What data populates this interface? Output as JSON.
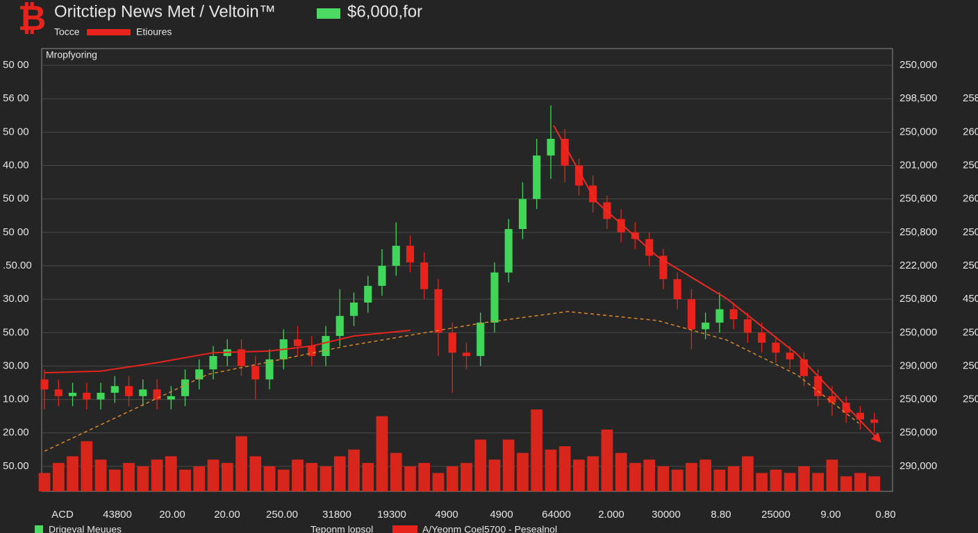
{
  "chart_data": {
    "type": "candlestick",
    "title": "Oritctiep News Met / Veltoin™",
    "price_label": "$6,000,for",
    "price_color": "#4cd964",
    "logo": "₿",
    "logo_color": "#e8231c",
    "panel_label": "Mropfyoring",
    "legend_top": [
      {
        "name": "Tocce",
        "color": "#e8231c"
      },
      {
        "name": "Etioures"
      }
    ],
    "legend_bottom": [
      {
        "name": "Drigeval Meuues",
        "color": "#4cd964"
      },
      {
        "name": "Teponm lopsol"
      },
      {
        "name": "A/Yeonm Coel5700 - Pesealnol",
        "color": "#e8231c"
      }
    ],
    "up_color": "#3fd65a",
    "down_color": "#e8231c",
    "volume_color": "#d9261c",
    "grid": true,
    "xlim": [
      -0.2,
      60.3
    ],
    "ylim": [
      -0.75,
      12.5
    ],
    "y2lim": [
      -0.75,
      12.5
    ],
    "yticks": [
      {
        "value": 12,
        "label": "50 00"
      },
      {
        "value": 11,
        "label": "56 00"
      },
      {
        "value": 10,
        "label": "50 00"
      },
      {
        "value": 9,
        "label": "40.00"
      },
      {
        "value": 8,
        "label": "50 00"
      },
      {
        "value": 7,
        "label": "50 00"
      },
      {
        "value": 6,
        "label": ".50.00"
      },
      {
        "value": 5,
        "label": "30.00"
      },
      {
        "value": 4,
        "label": "50.00"
      },
      {
        "value": 3,
        "label": "30.00"
      },
      {
        "value": 2,
        "label": "10.00"
      },
      {
        "value": 1,
        "label": "20.00"
      },
      {
        "value": 0,
        "label": "50.00"
      }
    ],
    "y2ticks": [
      {
        "value": 12,
        "label": "250,000"
      },
      {
        "value": 11,
        "label": "298,500"
      },
      {
        "value": 10,
        "label": "250,000"
      },
      {
        "value": 9,
        "label": "201,000"
      },
      {
        "value": 8,
        "label": "250,600"
      },
      {
        "value": 7,
        "label": "250,800"
      },
      {
        "value": 6,
        "label": "222,000"
      },
      {
        "value": 5,
        "label": "250,800"
      },
      {
        "value": 4,
        "label": "250,000"
      },
      {
        "value": 3,
        "label": "290,000"
      },
      {
        "value": 2,
        "label": "250,000"
      },
      {
        "value": 1,
        "label": "250,000"
      },
      {
        "value": 0,
        "label": "290,000"
      }
    ],
    "edge_labels": [
      {
        "value": 11,
        "label": "258"
      },
      {
        "value": 10,
        "label": "260"
      },
      {
        "value": 9,
        "label": "250"
      },
      {
        "value": 8,
        "label": "260"
      },
      {
        "value": 7,
        "label": "250"
      },
      {
        "value": 6,
        "label": "250"
      },
      {
        "value": 5,
        "label": "450"
      },
      {
        "value": 4,
        "label": "250"
      },
      {
        "value": 3,
        "label": "250"
      },
      {
        "value": 2,
        "label": "250"
      }
    ],
    "xtick_labels": [
      "ACD",
      "43800",
      "20.00",
      "20.00",
      "250.00",
      "31800",
      "19300",
      "4900",
      "4900",
      "64000",
      "2.000",
      "30000",
      "8.80",
      "25000",
      "9.00",
      "0.80"
    ],
    "open": [
      2.6,
      2.3,
      2.1,
      2.2,
      2.0,
      2.2,
      2.4,
      2.1,
      2.3,
      2.0,
      2.1,
      2.6,
      2.9,
      3.3,
      3.5,
      3.0,
      2.6,
      3.2,
      3.8,
      3.6,
      3.3,
      3.9,
      4.5,
      4.9,
      5.4,
      6.0,
      6.6,
      6.1,
      5.3,
      4.0,
      3.4,
      3.3,
      4.3,
      5.8,
      7.1,
      8.0,
      9.3,
      9.8,
      9.0,
      8.4,
      7.9,
      7.4,
      7.0,
      6.8,
      6.3,
      5.6,
      5.0,
      4.1,
      4.3,
      4.7,
      4.4,
      4.0,
      3.7,
      3.4,
      3.2,
      2.7,
      2.1,
      1.9,
      1.6,
      1.4
    ],
    "high": [
      2.9,
      2.6,
      2.5,
      2.5,
      2.5,
      2.7,
      2.7,
      2.6,
      2.6,
      2.4,
      2.9,
      3.2,
      3.6,
      3.8,
      3.8,
      3.3,
      3.5,
      4.1,
      4.2,
      3.9,
      4.2,
      5.3,
      5.2,
      5.7,
      6.5,
      7.3,
      6.9,
      6.4,
      5.6,
      4.3,
      3.7,
      4.6,
      6.1,
      7.4,
      8.5,
      9.8,
      10.8,
      10.1,
      9.2,
      8.7,
      8.1,
      7.7,
      7.3,
      7.0,
      6.5,
      5.8,
      5.3,
      4.6,
      5.2,
      4.9,
      4.6,
      4.3,
      3.9,
      3.6,
      3.4,
      2.9,
      2.4,
      2.1,
      1.8,
      1.6
    ],
    "low": [
      1.7,
      1.8,
      1.8,
      1.7,
      1.7,
      1.9,
      1.8,
      1.8,
      1.7,
      1.7,
      1.8,
      2.3,
      2.6,
      3.0,
      2.7,
      2.0,
      2.3,
      2.9,
      3.3,
      3.0,
      3.0,
      3.6,
      4.2,
      4.6,
      5.1,
      5.7,
      5.8,
      5.0,
      3.3,
      2.2,
      2.9,
      3.0,
      4.0,
      5.5,
      6.8,
      7.7,
      8.6,
      8.5,
      8.1,
      7.6,
      7.1,
      6.7,
      6.5,
      6.0,
      5.3,
      4.7,
      3.5,
      3.8,
      4.0,
      4.1,
      3.7,
      3.4,
      3.1,
      2.9,
      2.4,
      1.8,
      1.5,
      1.3,
      1.1,
      1.0
    ],
    "close": [
      2.3,
      2.1,
      2.2,
      2.0,
      2.2,
      2.4,
      2.1,
      2.3,
      2.0,
      2.1,
      2.6,
      2.9,
      3.3,
      3.5,
      3.0,
      2.6,
      3.2,
      3.8,
      3.6,
      3.3,
      3.9,
      4.5,
      4.9,
      5.4,
      6.0,
      6.6,
      6.1,
      5.3,
      4.0,
      3.4,
      3.3,
      4.3,
      5.8,
      7.1,
      8.0,
      9.3,
      9.8,
      9.0,
      8.4,
      7.9,
      7.4,
      7.0,
      6.8,
      6.3,
      5.6,
      5.0,
      4.1,
      4.3,
      4.7,
      4.4,
      4.0,
      3.7,
      3.4,
      3.2,
      2.7,
      2.1,
      1.9,
      1.6,
      1.4,
      1.3
    ],
    "volume": [
      -0.2,
      0.1,
      0.3,
      0.75,
      0.2,
      -0.1,
      0.1,
      0.0,
      0.2,
      0.3,
      -0.1,
      0.0,
      0.2,
      0.1,
      0.9,
      0.3,
      0.0,
      -0.1,
      0.2,
      0.1,
      0.0,
      0.3,
      0.5,
      0.1,
      1.5,
      0.4,
      0.0,
      0.1,
      -0.2,
      0.0,
      0.1,
      0.8,
      0.2,
      0.8,
      0.4,
      1.7,
      0.5,
      0.6,
      0.2,
      0.3,
      1.1,
      0.4,
      0.1,
      0.2,
      0.0,
      -0.1,
      0.1,
      0.2,
      -0.1,
      0.0,
      0.3,
      -0.2,
      -0.1,
      -0.2,
      0.0,
      -0.2,
      0.2,
      -0.3,
      -0.2,
      -0.3
    ],
    "lines": [
      {
        "color": "#e8231c",
        "dashed": false,
        "arrow": false,
        "x": [
          0,
          4,
          8,
          12,
          16,
          19,
          22,
          26
        ],
        "values": [
          2.8,
          2.85,
          3.1,
          3.4,
          3.45,
          3.6,
          3.9,
          4.07
        ]
      },
      {
        "color": "#d9892a",
        "dashed": true,
        "arrow": false,
        "x": [
          0,
          11.6,
          21.5,
          31.3,
          37.2,
          43.6,
          48.5,
          53.5,
          57.9
        ],
        "values": [
          0.45,
          2.75,
          3.6,
          4.3,
          4.63,
          4.36,
          3.78,
          2.74,
          1.29
        ]
      },
      {
        "color": "#ee2a22",
        "dashed": false,
        "arrow": true,
        "x": [
          36.2,
          39.2,
          43.6,
          48.5,
          53.5,
          59.4
        ],
        "values": [
          10.2,
          7.93,
          6.27,
          5.02,
          3.36,
          0.75
        ]
      }
    ]
  }
}
